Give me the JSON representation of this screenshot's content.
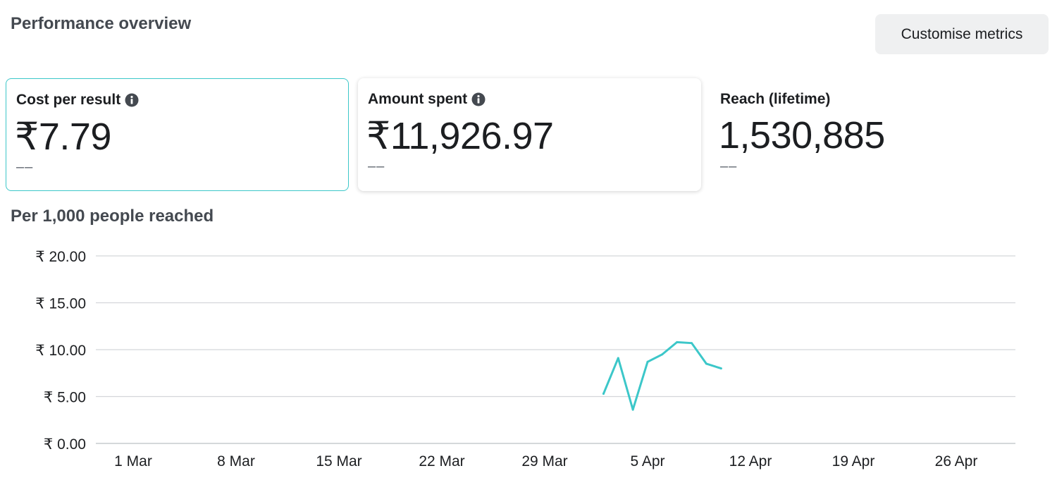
{
  "header": {
    "title": "Performance overview",
    "customise_label": "Customise metrics"
  },
  "metrics": [
    {
      "label": "Cost per result",
      "value": "₹7.79",
      "change": "––",
      "info_icon": "info-icon"
    },
    {
      "label": "Amount spent",
      "value": "₹11,926.97",
      "change": "––",
      "info_icon": "info-icon"
    },
    {
      "label": "Reach (lifetime)",
      "value": "1,530,885",
      "change": "––"
    }
  ],
  "chart_title": "Per 1,000 people reached",
  "colors": {
    "series": "#3cc7c9",
    "selected_border": "#3cc7c9",
    "button_bg": "#eff0f1",
    "grid": "#d4d6da"
  },
  "chart_data": {
    "type": "line",
    "title": "Per 1,000 people reached",
    "xlabel": "",
    "ylabel": "",
    "ylim": [
      0,
      20
    ],
    "y_ticks": [
      "₹ 0.00",
      "₹ 5.00",
      "₹ 10.00",
      "₹ 15.00",
      "₹ 20.00"
    ],
    "x_ticks": [
      "1 Mar",
      "8 Mar",
      "15 Mar",
      "22 Mar",
      "29 Mar",
      "5 Apr",
      "12 Apr",
      "19 Apr",
      "26 Apr"
    ],
    "grid": true,
    "series": [
      {
        "x": [
          "2 Apr",
          "3 Apr",
          "4 Apr",
          "5 Apr",
          "6 Apr",
          "7 Apr",
          "8 Apr",
          "9 Apr",
          "10 Apr"
        ],
        "values": [
          5.3,
          9.1,
          3.6,
          8.7,
          9.5,
          10.8,
          10.7,
          8.5,
          8.0
        ]
      }
    ]
  }
}
